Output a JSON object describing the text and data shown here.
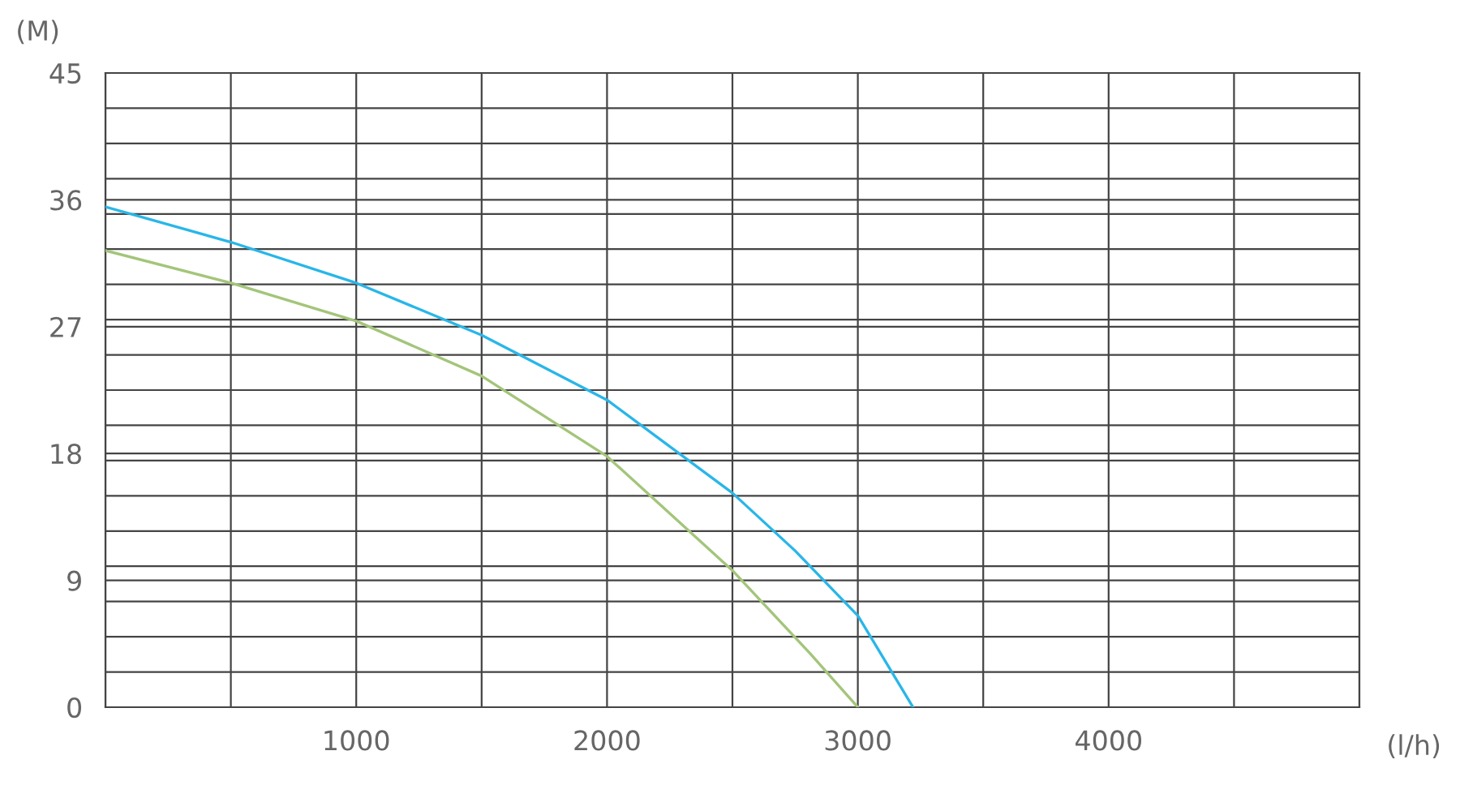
{
  "chart_data": {
    "type": "line",
    "xlabel": "(l/h)",
    "ylabel": "(M)",
    "xlim": [
      0,
      5000
    ],
    "xticks": [
      {
        "value": 0,
        "label": null
      },
      {
        "value": 500,
        "label": null
      },
      1000,
      {
        "value": 1500,
        "label": null
      },
      2000,
      {
        "value": 2500,
        "label": null
      },
      3000,
      {
        "value": 3500,
        "label": null
      },
      4000,
      {
        "value": 4500,
        "label": null
      },
      {
        "value": 5000,
        "label": null
      }
    ],
    "ylim": [
      0,
      45
    ],
    "yticks": [
      0,
      {
        "value": 2.5,
        "label": null
      },
      {
        "value": 5,
        "label": null
      },
      {
        "value": 7.5,
        "label": null
      },
      9,
      {
        "value": 10,
        "label": null
      },
      {
        "value": 12.5,
        "label": null
      },
      {
        "value": 15,
        "label": null
      },
      {
        "value": 17.5,
        "label": null
      },
      18,
      {
        "value": 20,
        "label": null
      },
      {
        "value": 22.5,
        "label": null
      },
      {
        "value": 25,
        "label": null
      },
      27,
      {
        "value": 27.5,
        "label": null
      },
      {
        "value": 30,
        "label": null
      },
      {
        "value": 32.5,
        "label": null
      },
      {
        "value": 35,
        "label": null
      },
      36,
      {
        "value": 37.5,
        "label": null
      },
      {
        "value": 40,
        "label": null
      },
      {
        "value": 42.5,
        "label": null
      },
      45
    ],
    "grid": true,
    "marker": "none",
    "line_style": "solid",
    "series": [
      {
        "color": "#a3c57a",
        "x": [
          0,
          500,
          1000,
          1500,
          2000,
          2500,
          2810,
          3000
        ],
        "values": [
          32.4,
          30.1,
          27.4,
          23.5,
          17.8,
          9.7,
          3.8,
          0
        ]
      },
      {
        "color": "#29b6e8",
        "x": [
          0,
          500,
          1000,
          1500,
          2000,
          2500,
          2750,
          3000,
          3220
        ],
        "values": [
          35.5,
          33.0,
          30.1,
          26.4,
          21.8,
          15.2,
          11.1,
          6.5,
          0
        ]
      }
    ]
  }
}
